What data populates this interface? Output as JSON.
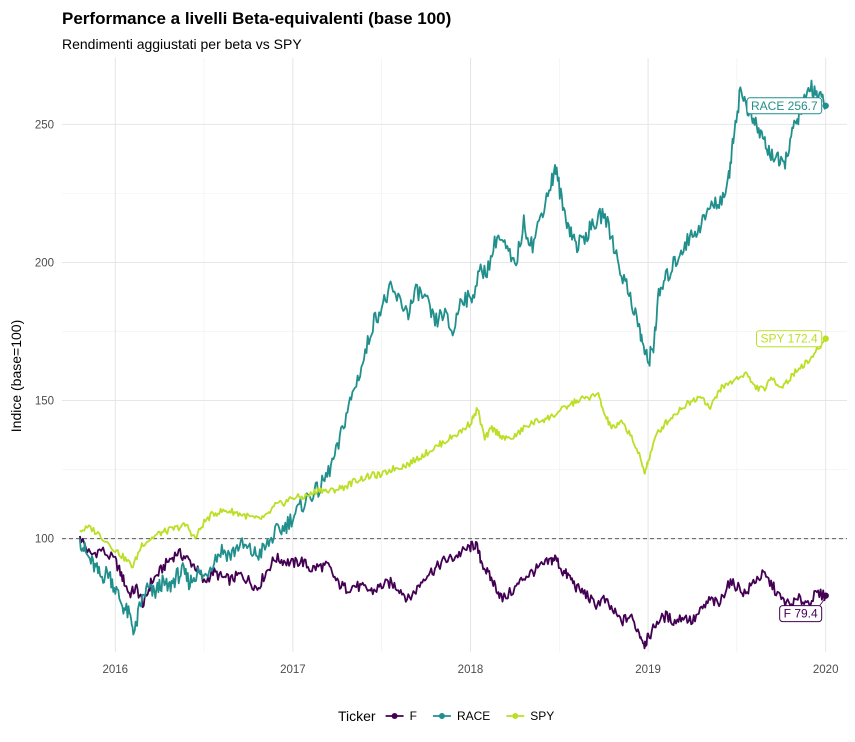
{
  "chart_data": {
    "type": "line",
    "title": "Performance a livelli Beta-equivalenti (base 100)",
    "subtitle": "Rendimenti aggiustati per beta vs SPY",
    "xlabel": "",
    "ylabel": "Indice (base=100)",
    "xlim": [
      2015.7,
      2020.12
    ],
    "ylim": [
      59,
      274
    ],
    "x_ticks": [
      2016,
      2017,
      2018,
      2019,
      2020
    ],
    "y_ticks": [
      100,
      150,
      200,
      250
    ],
    "grid": true,
    "reference_line": {
      "y": 100,
      "style": "dashed"
    },
    "legend": {
      "title": "Ticker",
      "position": "bottom"
    },
    "series": [
      {
        "name": "F",
        "color": "#440154",
        "end_label": "F  79.4",
        "points": [
          [
            2015.8,
            101
          ],
          [
            2015.86,
            94
          ],
          [
            2015.92,
            96
          ],
          [
            2016.0,
            92
          ],
          [
            2016.04,
            86
          ],
          [
            2016.08,
            80
          ],
          [
            2016.12,
            82
          ],
          [
            2016.16,
            76
          ],
          [
            2016.2,
            84
          ],
          [
            2016.25,
            88
          ],
          [
            2016.3,
            92
          ],
          [
            2016.35,
            95
          ],
          [
            2016.4,
            93
          ],
          [
            2016.45,
            90
          ],
          [
            2016.5,
            84
          ],
          [
            2016.55,
            88
          ],
          [
            2016.6,
            86
          ],
          [
            2016.65,
            85
          ],
          [
            2016.7,
            87
          ],
          [
            2016.75,
            85
          ],
          [
            2016.8,
            82
          ],
          [
            2016.85,
            88
          ],
          [
            2016.9,
            93
          ],
          [
            2016.95,
            92
          ],
          [
            2017.0,
            91
          ],
          [
            2017.05,
            92
          ],
          [
            2017.1,
            89
          ],
          [
            2017.15,
            90
          ],
          [
            2017.2,
            90
          ],
          [
            2017.25,
            84
          ],
          [
            2017.3,
            82
          ],
          [
            2017.35,
            83
          ],
          [
            2017.4,
            82
          ],
          [
            2017.45,
            81
          ],
          [
            2017.5,
            83
          ],
          [
            2017.55,
            84
          ],
          [
            2017.6,
            82
          ],
          [
            2017.65,
            78
          ],
          [
            2017.7,
            82
          ],
          [
            2017.75,
            87
          ],
          [
            2017.8,
            89
          ],
          [
            2017.85,
            92
          ],
          [
            2017.9,
            93
          ],
          [
            2017.95,
            95
          ],
          [
            2018.0,
            97
          ],
          [
            2018.03,
            98
          ],
          [
            2018.06,
            92
          ],
          [
            2018.1,
            87
          ],
          [
            2018.14,
            83
          ],
          [
            2018.18,
            78
          ],
          [
            2018.25,
            82
          ],
          [
            2018.3,
            86
          ],
          [
            2018.35,
            88
          ],
          [
            2018.4,
            90
          ],
          [
            2018.45,
            92
          ],
          [
            2018.48,
            93
          ],
          [
            2018.52,
            88
          ],
          [
            2018.56,
            86
          ],
          [
            2018.6,
            82
          ],
          [
            2018.65,
            80
          ],
          [
            2018.7,
            76
          ],
          [
            2018.75,
            78
          ],
          [
            2018.8,
            74
          ],
          [
            2018.85,
            70
          ],
          [
            2018.9,
            72
          ],
          [
            2018.95,
            66
          ],
          [
            2018.98,
            62
          ],
          [
            2019.0,
            64
          ],
          [
            2019.05,
            70
          ],
          [
            2019.1,
            72
          ],
          [
            2019.15,
            70
          ],
          [
            2019.2,
            72
          ],
          [
            2019.25,
            70
          ],
          [
            2019.3,
            74
          ],
          [
            2019.35,
            78
          ],
          [
            2019.4,
            76
          ],
          [
            2019.45,
            84
          ],
          [
            2019.5,
            83
          ],
          [
            2019.55,
            80
          ],
          [
            2019.6,
            85
          ],
          [
            2019.65,
            87
          ],
          [
            2019.7,
            83
          ],
          [
            2019.75,
            78
          ],
          [
            2019.8,
            76
          ],
          [
            2019.85,
            78
          ],
          [
            2019.9,
            77
          ],
          [
            2019.95,
            80
          ],
          [
            2020.0,
            79.4
          ]
        ]
      },
      {
        "name": "RACE",
        "color": "#21908C",
        "end_label": "RACE  256.7",
        "points": [
          [
            2015.8,
            100
          ],
          [
            2015.84,
            94
          ],
          [
            2015.88,
            90
          ],
          [
            2015.92,
            86
          ],
          [
            2015.96,
            88
          ],
          [
            2016.0,
            82
          ],
          [
            2016.04,
            76
          ],
          [
            2016.08,
            72
          ],
          [
            2016.11,
            66
          ],
          [
            2016.14,
            76
          ],
          [
            2016.18,
            82
          ],
          [
            2016.22,
            80
          ],
          [
            2016.26,
            84
          ],
          [
            2016.3,
            82
          ],
          [
            2016.34,
            86
          ],
          [
            2016.38,
            88
          ],
          [
            2016.42,
            84
          ],
          [
            2016.46,
            88
          ],
          [
            2016.5,
            86
          ],
          [
            2016.55,
            92
          ],
          [
            2016.6,
            96
          ],
          [
            2016.65,
            94
          ],
          [
            2016.7,
            98
          ],
          [
            2016.75,
            96
          ],
          [
            2016.8,
            94
          ],
          [
            2016.85,
            97
          ],
          [
            2016.9,
            102
          ],
          [
            2016.95,
            104
          ],
          [
            2017.0,
            108
          ],
          [
            2017.05,
            112
          ],
          [
            2017.1,
            116
          ],
          [
            2017.15,
            118
          ],
          [
            2017.2,
            124
          ],
          [
            2017.25,
            132
          ],
          [
            2017.3,
            145
          ],
          [
            2017.35,
            155
          ],
          [
            2017.4,
            165
          ],
          [
            2017.45,
            178
          ],
          [
            2017.5,
            184
          ],
          [
            2017.55,
            190
          ],
          [
            2017.6,
            186
          ],
          [
            2017.65,
            182
          ],
          [
            2017.7,
            190
          ],
          [
            2017.75,
            186
          ],
          [
            2017.8,
            178
          ],
          [
            2017.85,
            182
          ],
          [
            2017.9,
            174
          ],
          [
            2017.95,
            188
          ],
          [
            2018.0,
            186
          ],
          [
            2018.05,
            196
          ],
          [
            2018.1,
            198
          ],
          [
            2018.15,
            210
          ],
          [
            2018.2,
            205
          ],
          [
            2018.25,
            198
          ],
          [
            2018.3,
            214
          ],
          [
            2018.35,
            206
          ],
          [
            2018.4,
            218
          ],
          [
            2018.45,
            228
          ],
          [
            2018.48,
            234
          ],
          [
            2018.52,
            220
          ],
          [
            2018.56,
            212
          ],
          [
            2018.6,
            206
          ],
          [
            2018.65,
            210
          ],
          [
            2018.7,
            214
          ],
          [
            2018.75,
            218
          ],
          [
            2018.8,
            208
          ],
          [
            2018.85,
            196
          ],
          [
            2018.9,
            188
          ],
          [
            2018.95,
            176
          ],
          [
            2018.98,
            168
          ],
          [
            2019.0,
            164
          ],
          [
            2019.03,
            170
          ],
          [
            2019.06,
            188
          ],
          [
            2019.1,
            194
          ],
          [
            2019.15,
            200
          ],
          [
            2019.2,
            206
          ],
          [
            2019.25,
            210
          ],
          [
            2019.3,
            214
          ],
          [
            2019.35,
            220
          ],
          [
            2019.4,
            222
          ],
          [
            2019.45,
            228
          ],
          [
            2019.48,
            246
          ],
          [
            2019.52,
            262
          ],
          [
            2019.56,
            256
          ],
          [
            2019.6,
            250
          ],
          [
            2019.64,
            246
          ],
          [
            2019.68,
            240
          ],
          [
            2019.72,
            238
          ],
          [
            2019.76,
            234
          ],
          [
            2019.8,
            244
          ],
          [
            2019.84,
            252
          ],
          [
            2019.88,
            258
          ],
          [
            2019.92,
            264
          ],
          [
            2019.96,
            260
          ],
          [
            2020.0,
            256.7
          ]
        ]
      },
      {
        "name": "SPY",
        "color": "#BBDF27",
        "end_label": "SPY  172.4",
        "points": [
          [
            2015.8,
            103
          ],
          [
            2015.86,
            104
          ],
          [
            2015.92,
            101
          ],
          [
            2016.0,
            96
          ],
          [
            2016.05,
            93
          ],
          [
            2016.1,
            90
          ],
          [
            2016.15,
            98
          ],
          [
            2016.2,
            100
          ],
          [
            2016.25,
            102
          ],
          [
            2016.3,
            103
          ],
          [
            2016.35,
            104
          ],
          [
            2016.4,
            105
          ],
          [
            2016.45,
            100
          ],
          [
            2016.5,
            106
          ],
          [
            2016.55,
            109
          ],
          [
            2016.6,
            110
          ],
          [
            2016.65,
            110
          ],
          [
            2016.7,
            109
          ],
          [
            2016.75,
            108
          ],
          [
            2016.8,
            107
          ],
          [
            2016.85,
            108
          ],
          [
            2016.9,
            112
          ],
          [
            2016.95,
            113
          ],
          [
            2017.0,
            115
          ],
          [
            2017.05,
            115
          ],
          [
            2017.1,
            116
          ],
          [
            2017.15,
            118
          ],
          [
            2017.2,
            117
          ],
          [
            2017.25,
            118
          ],
          [
            2017.3,
            119
          ],
          [
            2017.35,
            121
          ],
          [
            2017.4,
            122
          ],
          [
            2017.45,
            123
          ],
          [
            2017.5,
            123
          ],
          [
            2017.55,
            125
          ],
          [
            2017.6,
            126
          ],
          [
            2017.65,
            127
          ],
          [
            2017.7,
            129
          ],
          [
            2017.75,
            131
          ],
          [
            2017.8,
            133
          ],
          [
            2017.85,
            135
          ],
          [
            2017.9,
            137
          ],
          [
            2017.95,
            139
          ],
          [
            2018.0,
            142
          ],
          [
            2018.04,
            147
          ],
          [
            2018.08,
            136
          ],
          [
            2018.12,
            140
          ],
          [
            2018.16,
            138
          ],
          [
            2018.2,
            136
          ],
          [
            2018.25,
            137
          ],
          [
            2018.3,
            140
          ],
          [
            2018.35,
            142
          ],
          [
            2018.4,
            143
          ],
          [
            2018.45,
            144
          ],
          [
            2018.5,
            146
          ],
          [
            2018.55,
            148
          ],
          [
            2018.6,
            150
          ],
          [
            2018.65,
            151
          ],
          [
            2018.72,
            152
          ],
          [
            2018.76,
            144
          ],
          [
            2018.8,
            140
          ],
          [
            2018.85,
            142
          ],
          [
            2018.9,
            138
          ],
          [
            2018.95,
            130
          ],
          [
            2018.98,
            124
          ],
          [
            2019.0,
            128
          ],
          [
            2019.05,
            138
          ],
          [
            2019.1,
            142
          ],
          [
            2019.15,
            145
          ],
          [
            2019.2,
            148
          ],
          [
            2019.25,
            150
          ],
          [
            2019.3,
            152
          ],
          [
            2019.35,
            147
          ],
          [
            2019.4,
            154
          ],
          [
            2019.45,
            156
          ],
          [
            2019.5,
            158
          ],
          [
            2019.55,
            160
          ],
          [
            2019.6,
            155
          ],
          [
            2019.65,
            154
          ],
          [
            2019.7,
            158
          ],
          [
            2019.75,
            155
          ],
          [
            2019.8,
            158
          ],
          [
            2019.85,
            162
          ],
          [
            2019.9,
            164
          ],
          [
            2019.95,
            168
          ],
          [
            2020.0,
            172.4
          ]
        ]
      }
    ]
  }
}
